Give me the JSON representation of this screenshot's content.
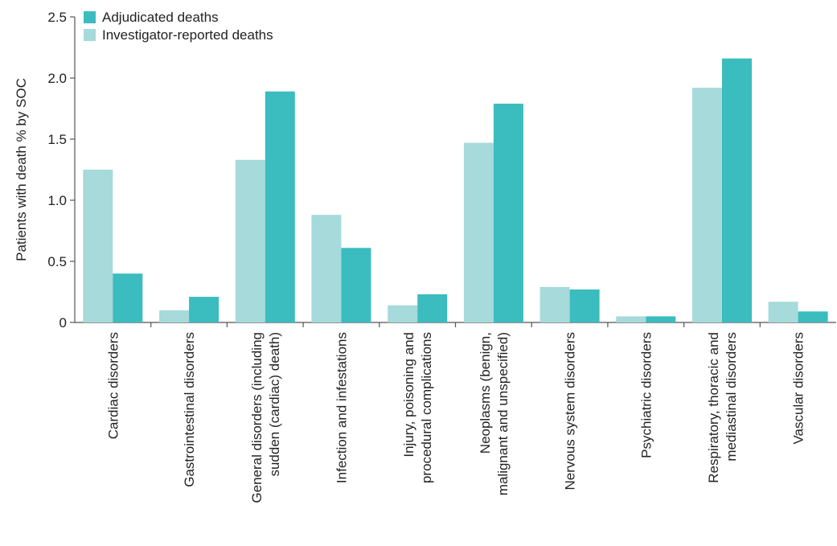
{
  "chart_data": {
    "type": "bar",
    "title": "",
    "xlabel": "",
    "ylabel": "Patients with death % by SOC",
    "ylim": [
      0,
      2.5
    ],
    "yticks": [
      "0",
      "0.5",
      "1.0",
      "1.5",
      "2.0",
      "2.5"
    ],
    "grid": false,
    "legend_position": "top-left",
    "categories": [
      [
        "Cardiac disorders"
      ],
      [
        "Gastrointestinal disorders"
      ],
      [
        "General disorders (including",
        "sudden (cardiac) death)"
      ],
      [
        "Infection and infestations"
      ],
      [
        "Injury, poisoning and",
        "procedural complications"
      ],
      [
        "Neoplasms (benign,",
        "malignant and unspecified)"
      ],
      [
        "Nervous system disorders"
      ],
      [
        "Psychiatric disorders"
      ],
      [
        "Respiratory, thoracic and",
        "mediastinal disorders"
      ],
      [
        "Vascular disorders"
      ]
    ],
    "series": [
      {
        "name": "Investigator-reported deaths",
        "color": "#a6dadb",
        "values": [
          1.25,
          0.1,
          1.33,
          0.88,
          0.14,
          1.47,
          0.29,
          0.05,
          1.92,
          0.17
        ]
      },
      {
        "name": "Adjudicated deaths",
        "color": "#3bbcbf",
        "values": [
          0.4,
          0.21,
          1.89,
          0.61,
          0.23,
          1.79,
          0.27,
          0.05,
          2.16,
          0.09
        ]
      }
    ],
    "legend_order": [
      "Adjudicated deaths",
      "Investigator-reported deaths"
    ]
  }
}
